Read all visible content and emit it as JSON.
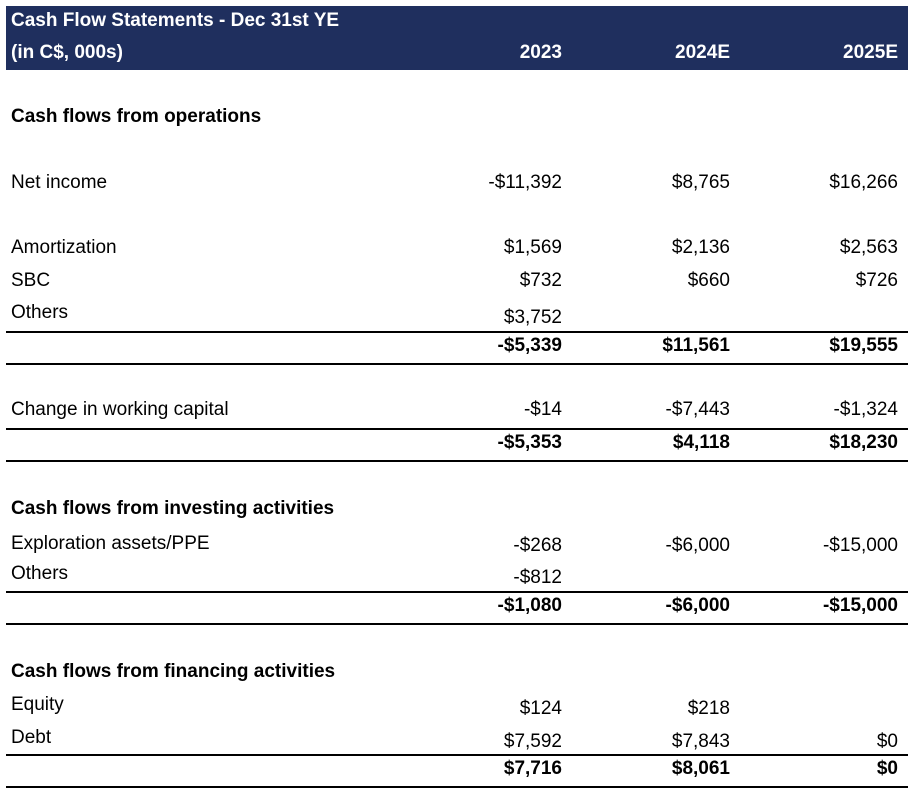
{
  "header": {
    "title": "Cash Flow Statements - Dec 31st YE",
    "units": "(in C$, 000s)",
    "years": [
      "2023",
      "2024E",
      "2025E"
    ]
  },
  "sections": {
    "operations": "Cash flows from operations",
    "investing": "Cash flows from investing activities",
    "financing": "Cash flows from financing activities"
  },
  "rows": {
    "net_income": {
      "label": "Net income",
      "values": [
        "-$11,392",
        "$8,765",
        "$16,266"
      ]
    },
    "amortization": {
      "label": "Amortization",
      "values": [
        "$1,569",
        "$2,136",
        "$2,563"
      ]
    },
    "sbc": {
      "label": "SBC",
      "values": [
        "$732",
        "$660",
        "$726"
      ]
    },
    "ops_others": {
      "label": "Others",
      "values": [
        "$3,752",
        "",
        ""
      ]
    },
    "ops_subtotal": {
      "values": [
        "-$5,339",
        "$11,561",
        "$19,555"
      ]
    },
    "working_capital": {
      "label": "Change in working capital",
      "values": [
        "-$14",
        "-$7,443",
        "-$1,324"
      ]
    },
    "ops_total": {
      "values": [
        "-$5,353",
        "$4,118",
        "$18,230"
      ]
    },
    "exploration": {
      "label": "Exploration assets/PPE",
      "values": [
        "-$268",
        "-$6,000",
        "-$15,000"
      ]
    },
    "inv_others": {
      "label": "Others",
      "values": [
        "-$812",
        "",
        ""
      ]
    },
    "inv_total": {
      "values": [
        "-$1,080",
        "-$6,000",
        "-$15,000"
      ]
    },
    "equity": {
      "label": "Equity",
      "values": [
        "$124",
        "$218",
        ""
      ]
    },
    "debt": {
      "label": "Debt",
      "values": [
        "$7,592",
        "$7,843",
        "$0"
      ]
    },
    "fin_total": {
      "values": [
        "$7,716",
        "$8,061",
        "$0"
      ]
    }
  }
}
